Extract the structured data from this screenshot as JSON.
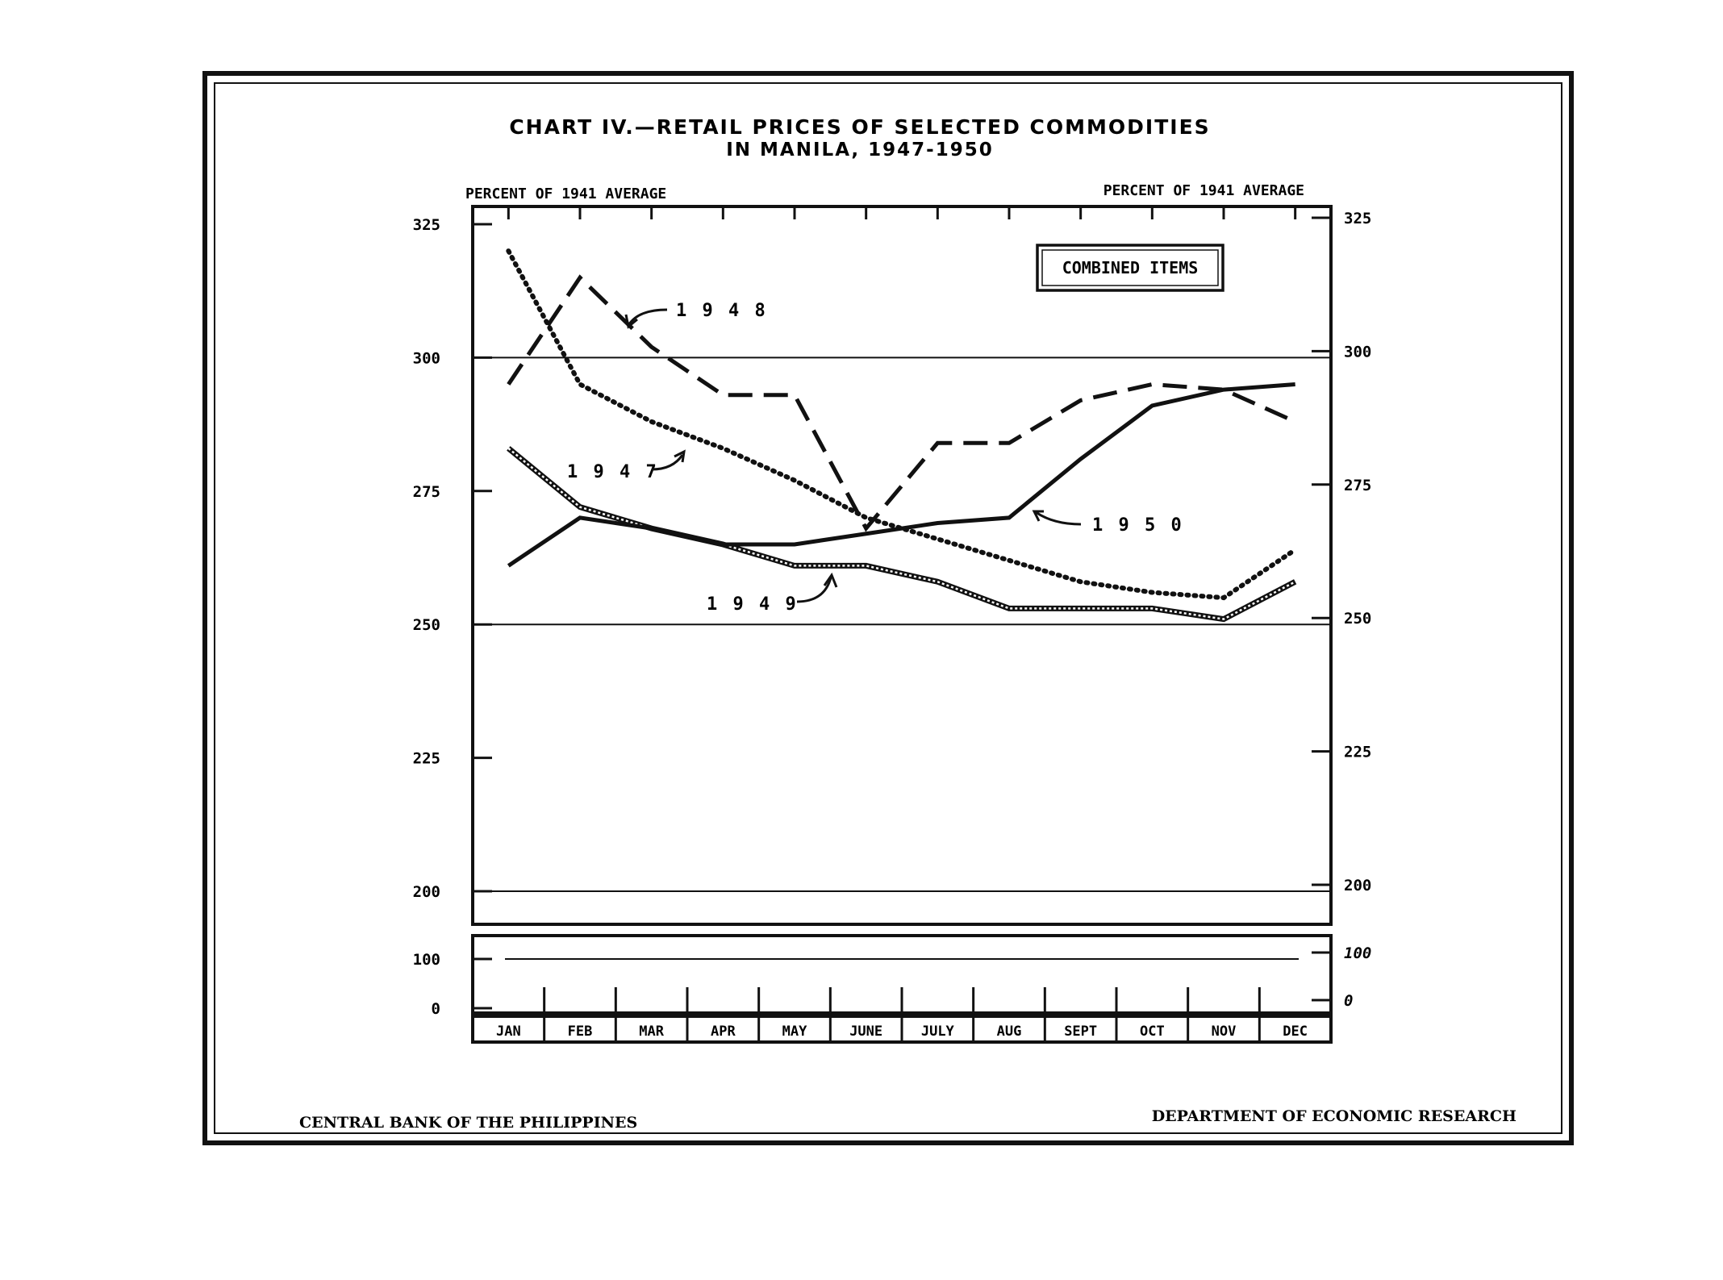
{
  "chart_data": {
    "type": "line",
    "title": "CHART IV.—RETAIL PRICES OF SELECTED COMMODITIES",
    "subtitle": "IN MANILA, 1947-1950",
    "ylabel_left": "PERCENT OF 1941 AVERAGE",
    "ylabel_right": "PERCENT OF 1941 AVERAGE",
    "legend_box": "COMBINED ITEMS",
    "ylim": [
      200,
      325
    ],
    "yticks": [
      "325",
      "300",
      "275",
      "250",
      "225",
      "200"
    ],
    "yticks_right": [
      "325",
      "300",
      "275",
      "250",
      "225",
      "200"
    ],
    "lower_panel_ticks_left": [
      "100",
      "0"
    ],
    "lower_panel_ticks_right": [
      "100",
      "0"
    ],
    "categories": [
      "JAN",
      "FEB",
      "MAR",
      "APR",
      "MAY",
      "JUNE",
      "JULY",
      "AUG",
      "SEPT",
      "OCT",
      "NOV",
      "DEC"
    ],
    "series": [
      {
        "name": "1947",
        "style": "dotted",
        "values": [
          320,
          295,
          288,
          283,
          277,
          270,
          266,
          262,
          258,
          256,
          255,
          264
        ]
      },
      {
        "name": "1948",
        "style": "dashed",
        "values": [
          295,
          315,
          302,
          293,
          293,
          268,
          284,
          284,
          292,
          295,
          294,
          288
        ]
      },
      {
        "name": "1949",
        "style": "double",
        "values": [
          283,
          272,
          268,
          265,
          261,
          261,
          258,
          253,
          253,
          253,
          251,
          258
        ]
      },
      {
        "name": "1950",
        "style": "solid",
        "values": [
          261,
          270,
          268,
          265,
          265,
          267,
          269,
          270,
          281,
          291,
          294,
          295
        ]
      }
    ],
    "series_labels": [
      "1 9 4 7",
      "1 9 4 8",
      "1 9 4 9",
      "1 9 5 0"
    ],
    "reference_lines": [
      300,
      250,
      200,
      100
    ]
  },
  "footer": {
    "left": "CENTRAL BANK OF THE PHILIPPINES",
    "right": "DEPARTMENT OF ECONOMIC RESEARCH"
  }
}
